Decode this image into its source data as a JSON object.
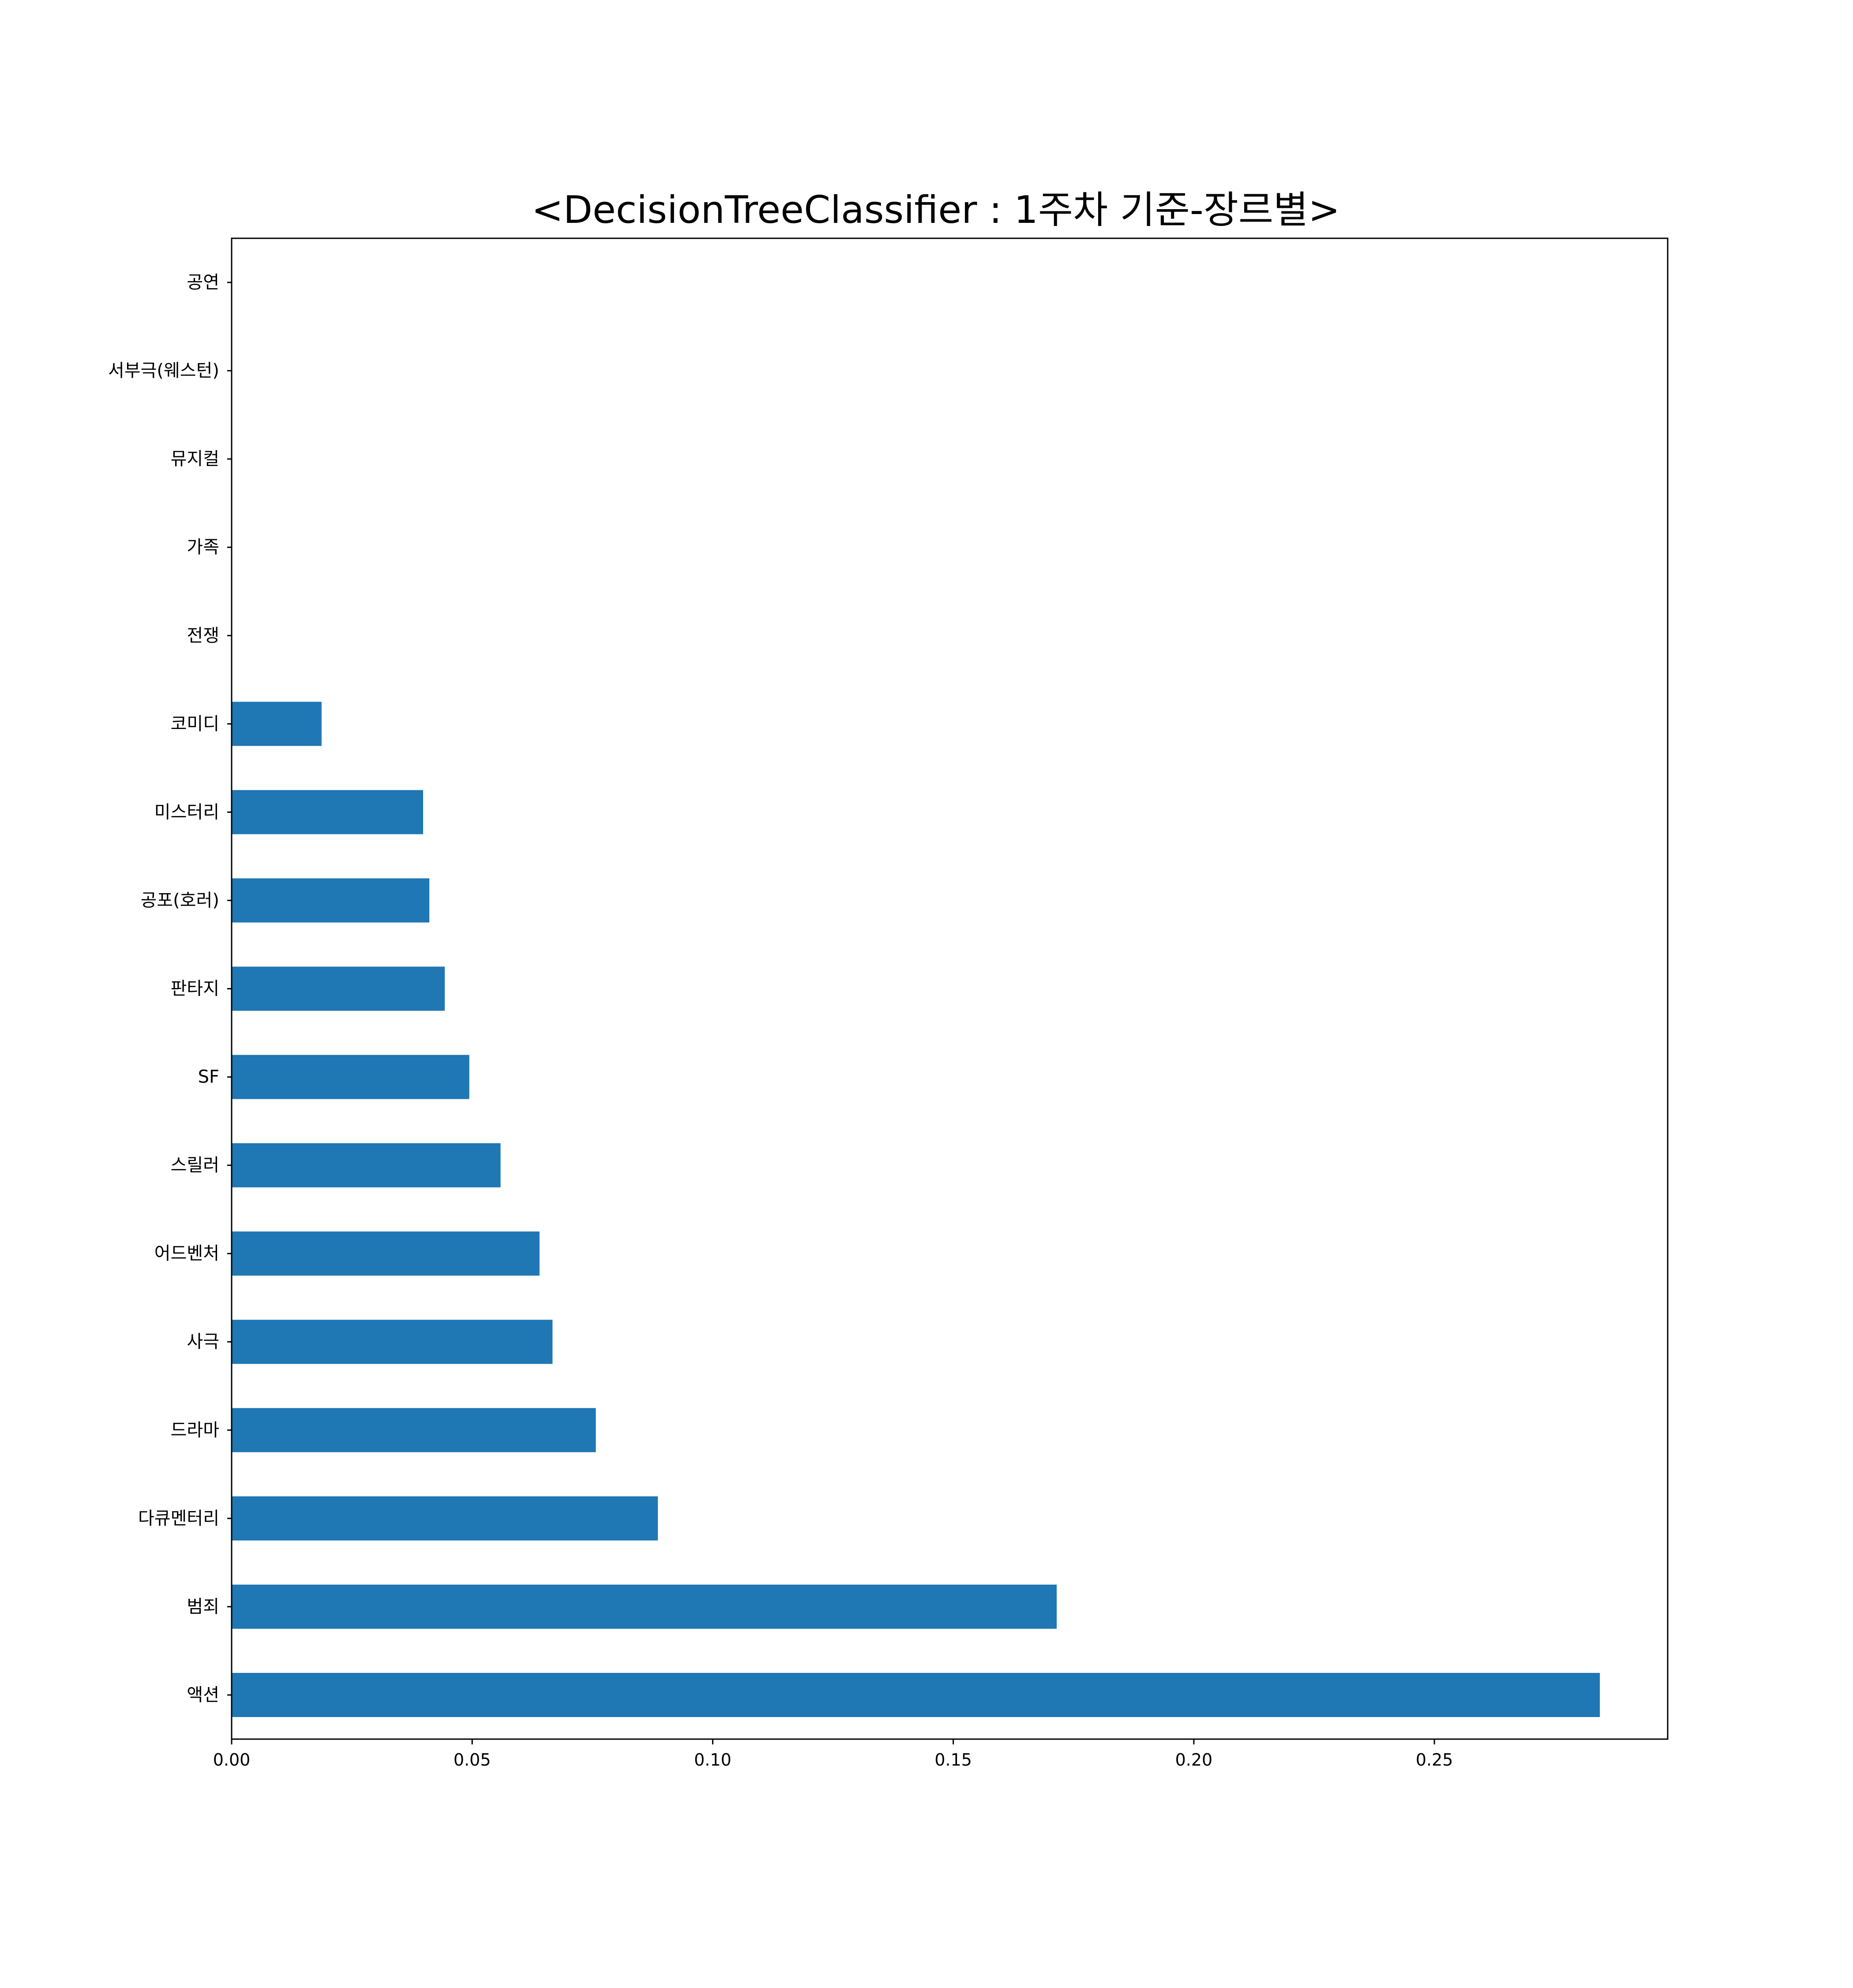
{
  "chart_data": {
    "type": "bar",
    "orientation": "horizontal",
    "title": "<DecisionTreeClassifier : 1주차 기준-장르별>",
    "xlabel": "",
    "ylabel": "",
    "categories": [
      "공연",
      "서부극(웨스턴)",
      "뮤지컬",
      "가족",
      "전쟁",
      "코미디",
      "미스터리",
      "공포(호러)",
      "판타지",
      "SF",
      "스릴러",
      "어드벤처",
      "사극",
      "드라마",
      "다큐멘터리",
      "범죄",
      "액션"
    ],
    "values": [
      0.0,
      0.0,
      0.0,
      0.0,
      0.0,
      0.0187,
      0.0398,
      0.0411,
      0.0443,
      0.0494,
      0.0559,
      0.064,
      0.0667,
      0.0757,
      0.0886,
      0.1715,
      0.2844
    ],
    "xlim": [
      0.0,
      0.2985
    ],
    "xticks": [
      0.0,
      0.05,
      0.1,
      0.15,
      0.2,
      0.25
    ],
    "xtick_labels": [
      "0.00",
      "0.05",
      "0.10",
      "0.15",
      "0.20",
      "0.25"
    ],
    "grid": false,
    "legend": "none",
    "bar_color": "#1f77b4"
  }
}
